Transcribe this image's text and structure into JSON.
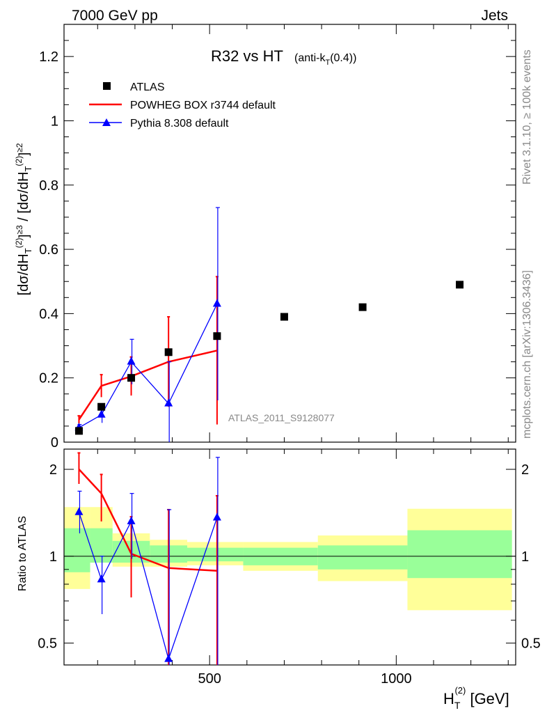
{
  "header": {
    "left": "7000 GeV pp",
    "right": "Jets"
  },
  "side_text": {
    "rivet": "Rivet 3.1.10, ≥ 100k events",
    "mcplots": "mcplots.cern.ch [arXiv:1306.3436]"
  },
  "chart_data": [
    {
      "type": "scatter",
      "title": "R32 vs HT",
      "title_suffix": "(anti-kT(0.4))",
      "ylabel": "[dσ/dHT(2)]≥3 / [dσ/dHT(2)]≥2",
      "xlabel": "HT(2) [GeV]",
      "analysis_id": "ATLAS_2011_S9128077",
      "xlim": [
        110,
        1320
      ],
      "ylim": [
        0,
        1.3
      ],
      "y_ticks": [
        "0",
        "0.2",
        "0.4",
        "0.6",
        "0.8",
        "1",
        "1.2"
      ],
      "legend_position": "top-left",
      "series": [
        {
          "name": "ATLAS",
          "color": "#000000",
          "marker": "square",
          "x": [
            150,
            210,
            290,
            390,
            520,
            700,
            910,
            1170
          ],
          "y": [
            0.035,
            0.11,
            0.2,
            0.28,
            0.33,
            0.39,
            0.42,
            0.49
          ]
        },
        {
          "name": "POWHEG BOX r3744 default",
          "color": "#ff0000",
          "marker": "line",
          "x": [
            150,
            210,
            290,
            390,
            520
          ],
          "y": [
            0.07,
            0.175,
            0.205,
            0.25,
            0.285
          ],
          "yerr": [
            0.012,
            0.035,
            0.06,
            0.14,
            0.23
          ]
        },
        {
          "name": "Pythia 8.308 default",
          "color": "#0000ff",
          "marker": "triangle",
          "x": [
            150,
            210,
            290,
            390,
            520
          ],
          "y": [
            0.045,
            0.085,
            0.25,
            0.12,
            0.43
          ],
          "yerr": [
            0.01,
            0.025,
            0.07,
            0.13,
            0.3
          ]
        }
      ]
    },
    {
      "type": "line",
      "ylabel": "Ratio to ATLAS",
      "scale": "log",
      "ylim": [
        0.42,
        2.35
      ],
      "y_ticks": [
        "0.5",
        "1",
        "2"
      ],
      "x_ticks": [
        "500",
        "1000"
      ],
      "bins": [
        {
          "x0": 110,
          "x1": 180,
          "stat": [
            0.88,
            1.25
          ],
          "total": [
            0.77,
            1.48
          ]
        },
        {
          "x0": 180,
          "x1": 240,
          "stat": [
            0.95,
            1.25
          ],
          "total": [
            0.95,
            1.48
          ]
        },
        {
          "x0": 240,
          "x1": 340,
          "stat": [
            0.95,
            1.13
          ],
          "total": [
            0.92,
            1.2
          ]
        },
        {
          "x0": 340,
          "x1": 440,
          "stat": [
            0.95,
            1.09
          ],
          "total": [
            0.92,
            1.14
          ]
        },
        {
          "x0": 440,
          "x1": 590,
          "stat": [
            0.96,
            1.07
          ],
          "total": [
            0.93,
            1.12
          ]
        },
        {
          "x0": 590,
          "x1": 790,
          "stat": [
            0.93,
            1.07
          ],
          "total": [
            0.89,
            1.12
          ]
        },
        {
          "x0": 790,
          "x1": 1030,
          "stat": [
            0.9,
            1.09
          ],
          "total": [
            0.82,
            1.18
          ]
        },
        {
          "x0": 1030,
          "x1": 1310,
          "stat": [
            0.84,
            1.23
          ],
          "total": [
            0.65,
            1.46
          ]
        }
      ],
      "series": [
        {
          "name": "POWHEG BOX r3744 default",
          "color": "#ff0000",
          "x": [
            150,
            210,
            290,
            390,
            520
          ],
          "y": [
            2.0,
            1.65,
            1.02,
            0.91,
            0.89
          ],
          "ylo": [
            1.78,
            1.32,
            0.72,
            0.42,
            0.42
          ],
          "yhi": [
            2.28,
            1.92,
            1.37,
            1.45,
            1.62
          ]
        },
        {
          "name": "Pythia 8.308 default",
          "color": "#0000ff",
          "x": [
            150,
            210,
            290,
            390,
            520
          ],
          "y": [
            1.42,
            0.83,
            1.32,
            0.44,
            1.36
          ],
          "ylo": [
            1.2,
            0.63,
            0.98,
            0.42,
            0.42
          ],
          "yhi": [
            1.68,
            1.0,
            1.65,
            1.45,
            2.2
          ]
        }
      ]
    }
  ]
}
